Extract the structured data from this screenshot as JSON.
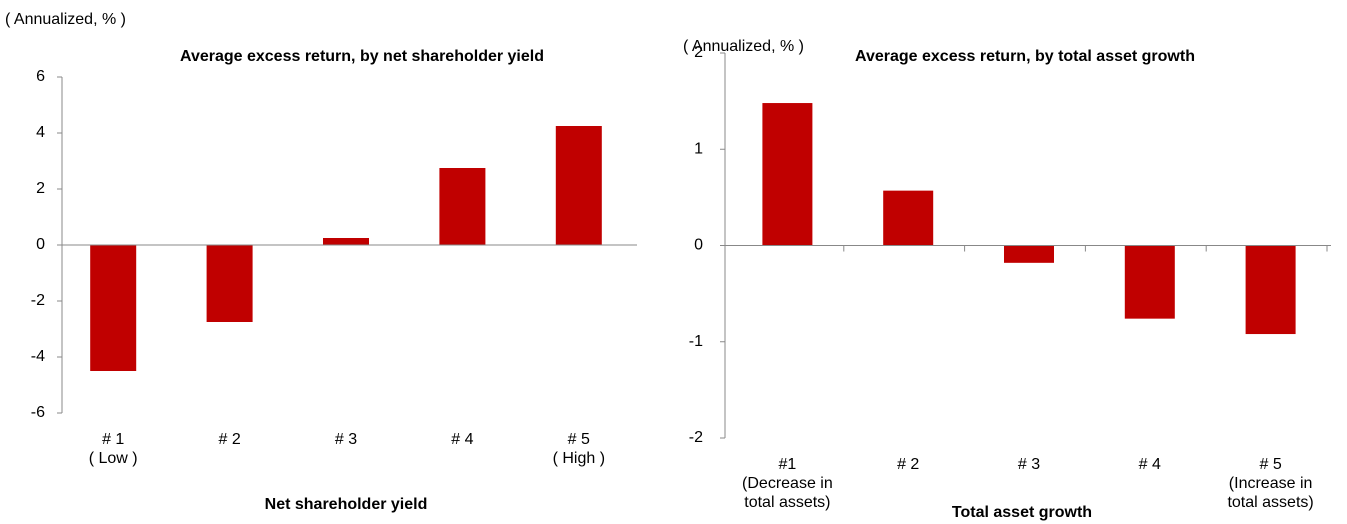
{
  "chart_data": [
    {
      "type": "bar",
      "title": "Average excess return, by net shareholder yield",
      "ylabel": "( Annualized, % )",
      "xlabel": "Net shareholder yield",
      "categories": [
        "# 1\n( Low )",
        "# 2",
        "# 3",
        "# 4",
        "# 5\n( High )"
      ],
      "values": [
        -4.5,
        -2.75,
        0.25,
        2.75,
        4.25
      ],
      "color": "#c00000",
      "ylim": [
        -6,
        6
      ],
      "yticks": [
        -6,
        -4,
        -2,
        0,
        2,
        4,
        6
      ]
    },
    {
      "type": "bar",
      "title": "Average excess return, by total asset growth",
      "ylabel": "( Annualized, % )",
      "xlabel": "Total asset growth",
      "categories": [
        "#1\n(Decrease in\ntotal assets)",
        "# 2",
        "# 3",
        "# 4",
        "# 5\n(Increase in\ntotal assets)"
      ],
      "values": [
        1.48,
        0.57,
        -0.18,
        -0.76,
        -0.92
      ],
      "color": "#c00000",
      "ylim": [
        -2,
        2
      ],
      "yticks": [
        -2,
        -1,
        0,
        1,
        2
      ]
    }
  ]
}
